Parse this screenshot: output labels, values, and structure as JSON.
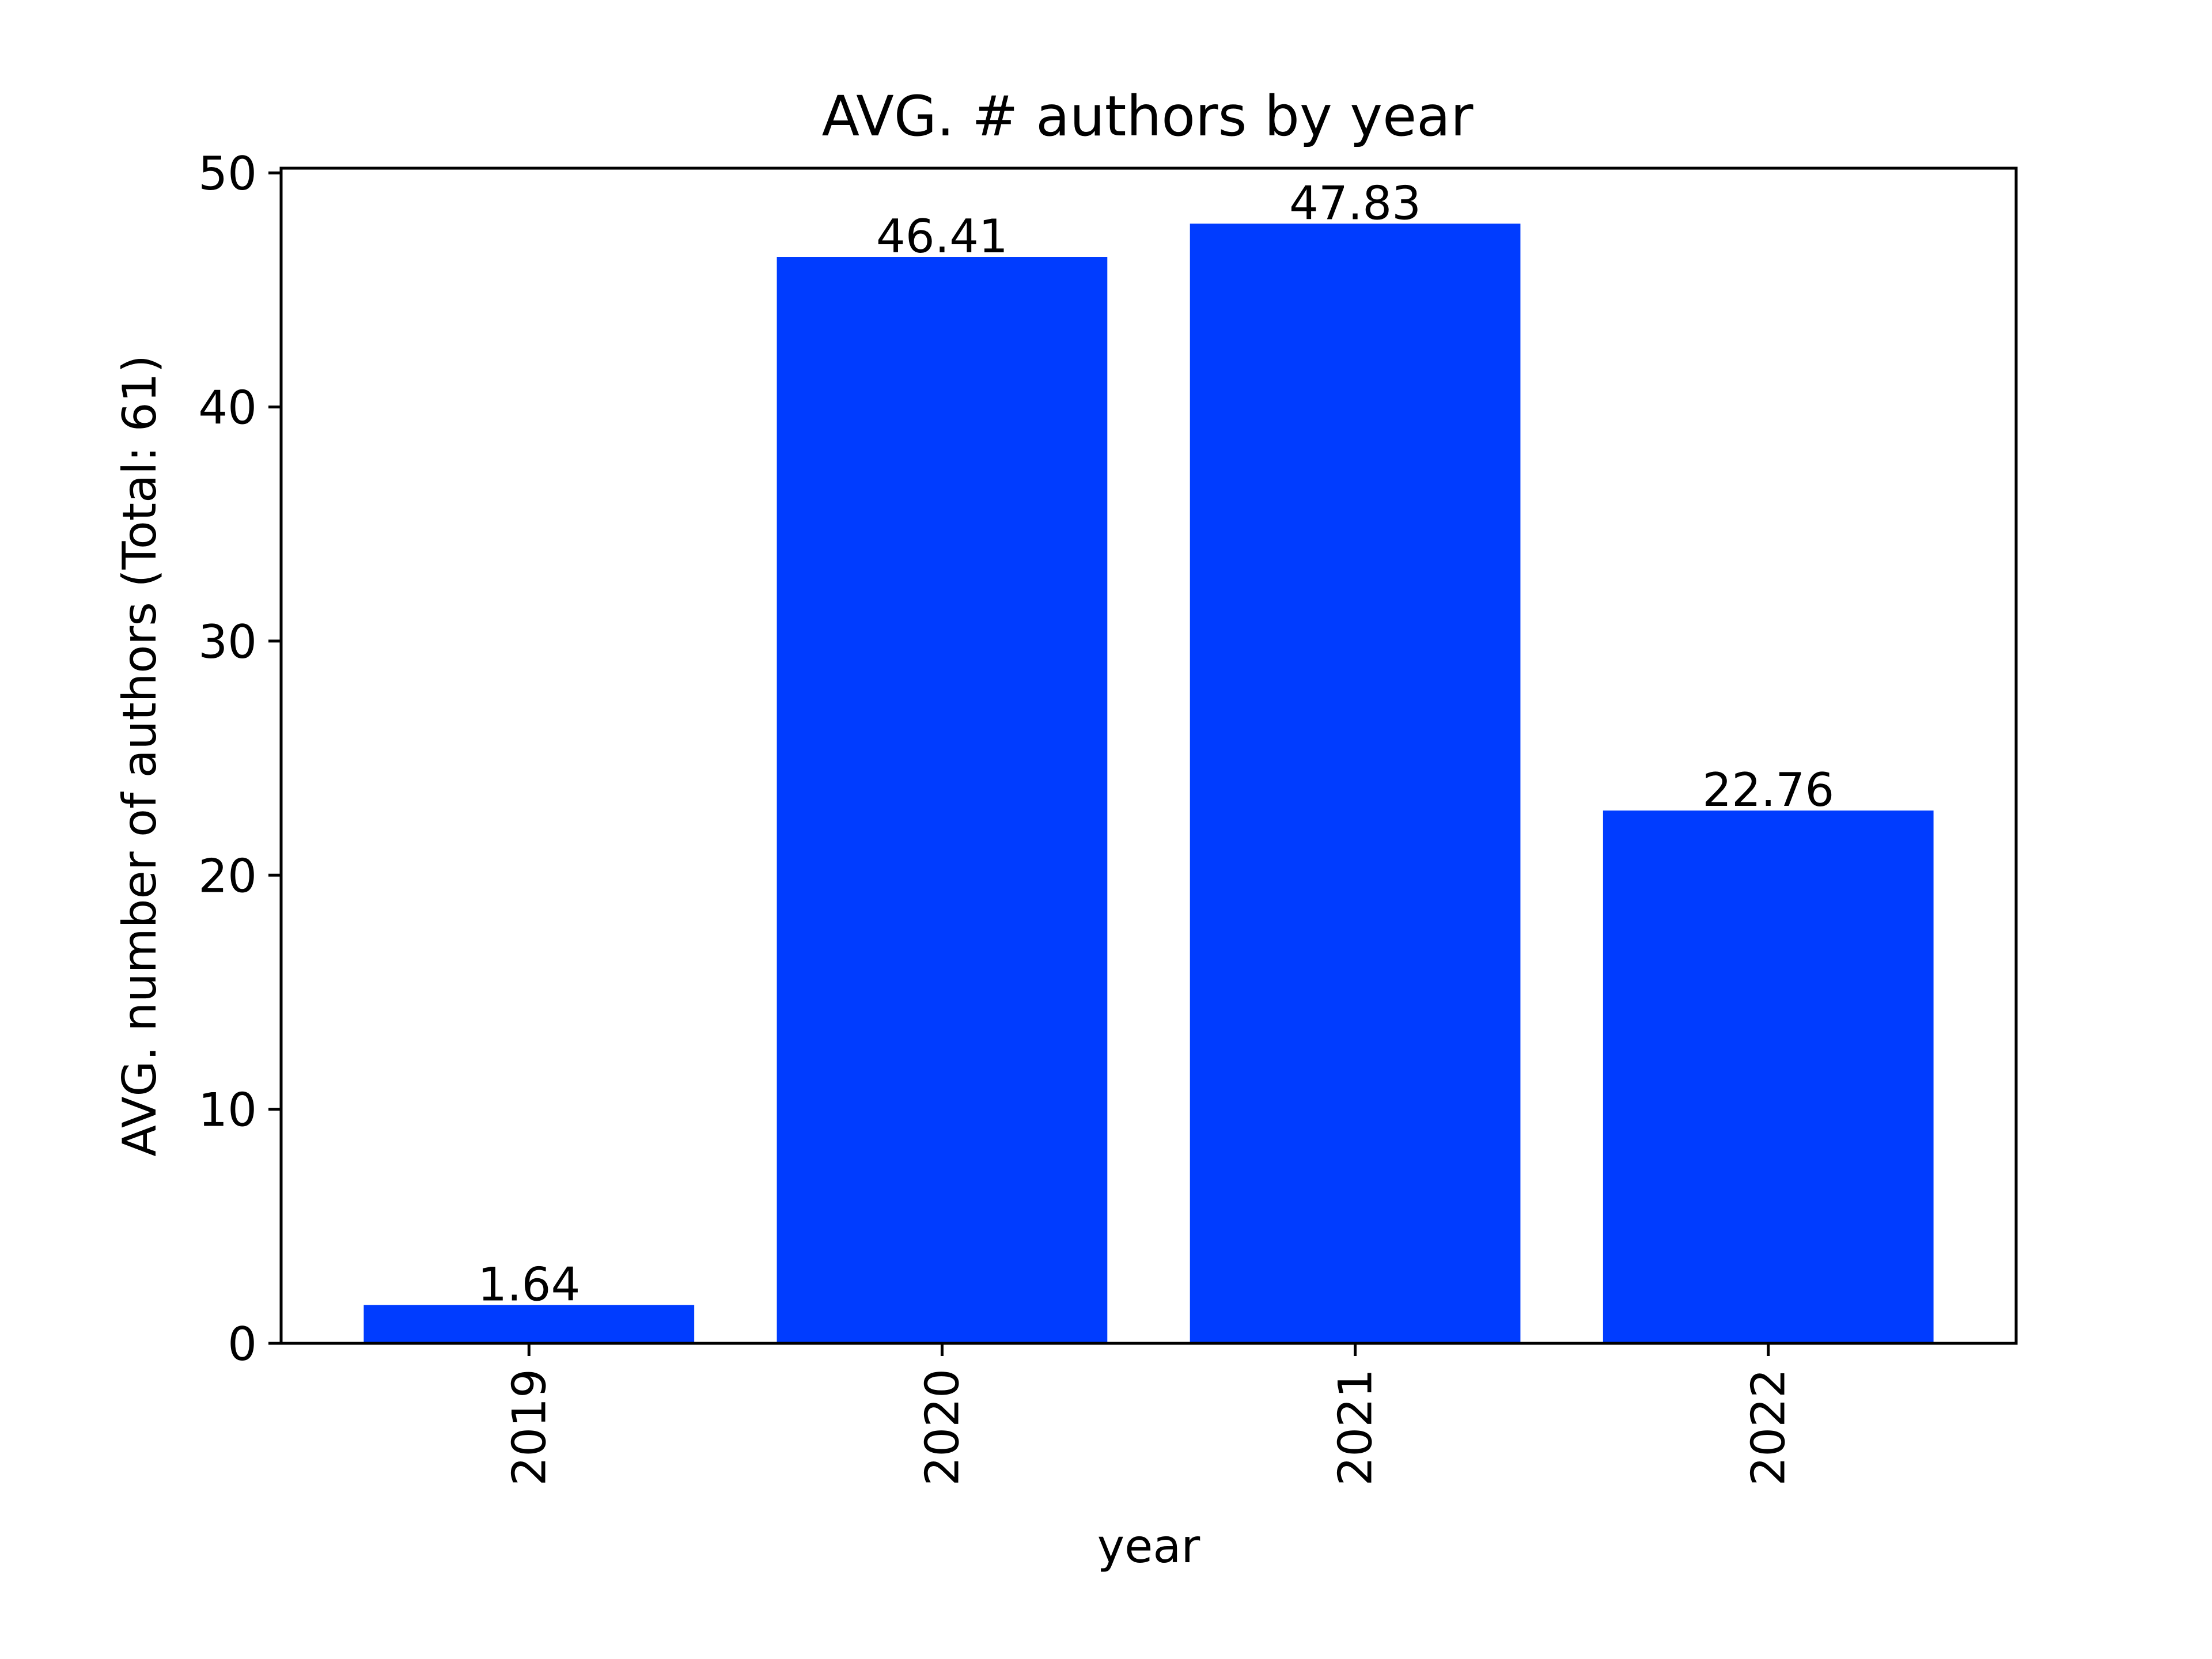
{
  "chart_data": {
    "type": "bar",
    "title": "AVG. # authors by year",
    "xlabel": "year",
    "ylabel": "AVG. number of authors (Total: 61)",
    "categories": [
      "2019",
      "2020",
      "2021",
      "2022"
    ],
    "values": [
      1.64,
      46.41,
      47.83,
      22.76
    ],
    "data_labels": [
      "1.64",
      "46.41",
      "47.83",
      "22.76"
    ],
    "y_ticks": [
      0,
      10,
      20,
      30,
      40,
      50
    ],
    "ylim": [
      0,
      50.2
    ],
    "bar_color": "#003cff",
    "x_tick_rotation": "vertical",
    "grid": false,
    "legend": "none"
  }
}
